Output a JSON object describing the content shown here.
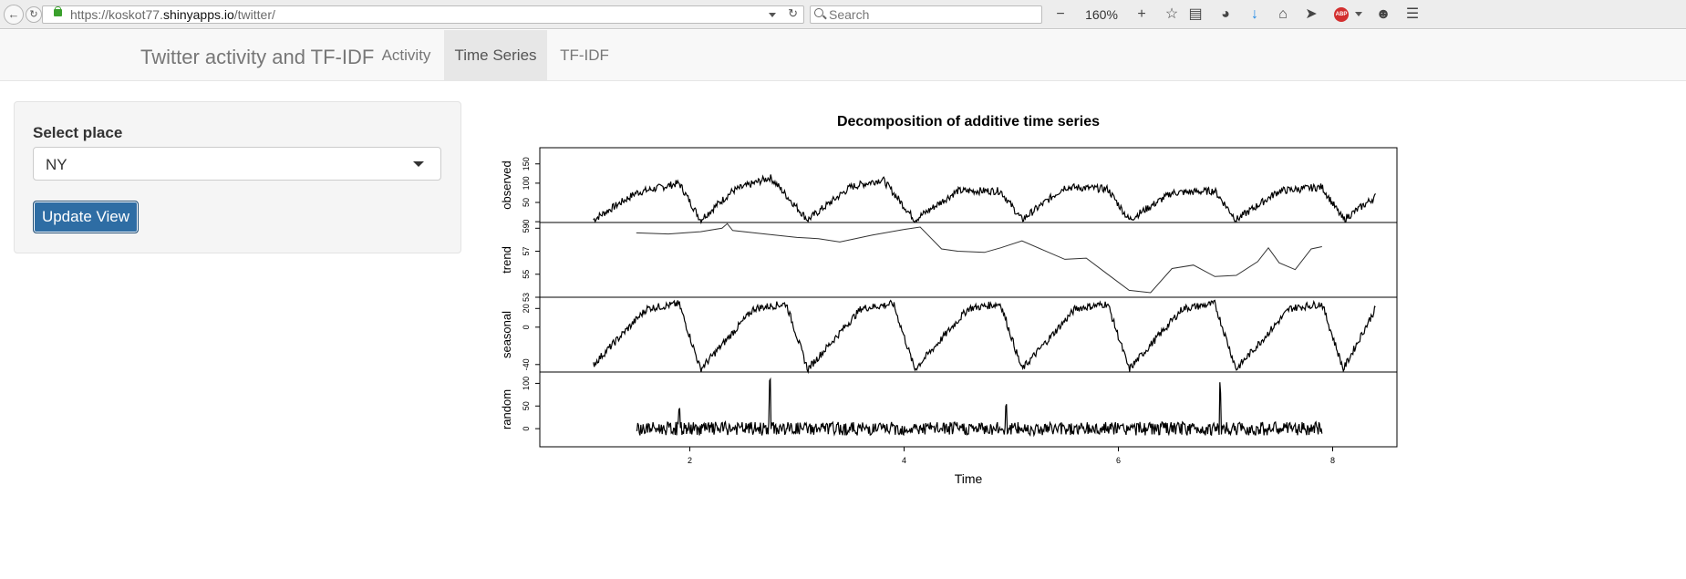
{
  "browser": {
    "url_prefix": "https://koskot77.",
    "url_host": "shinyapps.io",
    "url_suffix": "/twitter/",
    "search_placeholder": "Search",
    "zoom_level": "160%",
    "zoom_out_label": "−",
    "zoom_in_label": "+"
  },
  "app": {
    "brand": "Twitter activity and TF-IDF",
    "tabs": [
      {
        "label": "Activity",
        "active": false
      },
      {
        "label": "Time Series",
        "active": true
      },
      {
        "label": "TF-IDF",
        "active": false
      }
    ]
  },
  "sidebar": {
    "select_label": "Select place",
    "select_value": "NY",
    "button_label": "Update View",
    "button_color": "#2e6da4"
  },
  "chart_data": {
    "type": "line",
    "title": "Decomposition of additive time series",
    "xlabel": "Time",
    "xlim": [
      0.6,
      8.6
    ],
    "x_ticks": [
      2,
      4,
      6,
      8
    ],
    "panels": [
      {
        "name": "observed",
        "ylim": [
          -2,
          192
        ],
        "y_ticks": [
          0,
          50,
          100,
          150
        ],
        "description_points": {
          "x": [
            1.1,
            1.5,
            1.9,
            2.1,
            2.4,
            2.75,
            2.8,
            3.1,
            3.5,
            3.8,
            4.1,
            4.5,
            4.9,
            5.1,
            5.5,
            5.9,
            6.1,
            6.5,
            6.9,
            7.1,
            7.5,
            7.9,
            8.1,
            8.4
          ],
          "y": [
            5,
            75,
            100,
            5,
            80,
            115,
            100,
            5,
            90,
            110,
            5,
            80,
            80,
            5,
            90,
            85,
            5,
            75,
            80,
            5,
            80,
            90,
            5,
            65
          ]
        }
      },
      {
        "name": "trend",
        "ylim": [
          53,
          59.5
        ],
        "y_ticks": [
          53,
          55,
          57,
          59
        ],
        "x": [
          1.5,
          1.8,
          2.1,
          2.3,
          2.35,
          2.4,
          2.7,
          3.0,
          3.2,
          3.4,
          3.7,
          4.0,
          4.15,
          4.35,
          4.5,
          4.75,
          4.9,
          5.1,
          5.3,
          5.5,
          5.7,
          5.9,
          6.1,
          6.3,
          6.5,
          6.7,
          6.9,
          7.1,
          7.3,
          7.4,
          7.5,
          7.65,
          7.8,
          7.9
        ],
        "y": [
          58.6,
          58.5,
          58.7,
          59.0,
          59.4,
          58.8,
          58.5,
          58.2,
          58.1,
          57.8,
          58.4,
          58.9,
          59.1,
          57.2,
          57.0,
          56.9,
          57.3,
          57.9,
          57.1,
          56.3,
          56.4,
          55.0,
          53.6,
          53.4,
          55.5,
          55.8,
          54.8,
          54.9,
          56.1,
          57.3,
          56.0,
          55.4,
          57.2,
          57.4
        ]
      },
      {
        "name": "seasonal",
        "ylim": [
          -48,
          32
        ],
        "y_ticks": [
          -40,
          0,
          20
        ],
        "description_points": {
          "x": [
            1.1,
            1.6,
            1.9,
            2.1,
            2.6,
            2.9,
            3.1,
            3.6,
            3.9,
            4.1,
            4.6,
            4.9,
            5.1,
            5.6,
            5.9,
            6.1,
            6.6,
            6.9,
            7.1,
            7.6,
            7.9,
            8.1,
            8.4
          ],
          "y": [
            -40,
            20,
            25,
            -45,
            20,
            25,
            -45,
            20,
            25,
            -45,
            20,
            25,
            -45,
            20,
            25,
            -45,
            20,
            25,
            -45,
            20,
            25,
            -45,
            20
          ]
        }
      },
      {
        "name": "random",
        "ylim": [
          -40,
          125
        ],
        "y_ticks": [
          0,
          50,
          100
        ],
        "description_points": {
          "x": [
            1.5,
            1.9,
            2.75,
            4.95,
            6.95,
            7.9
          ],
          "y": [
            0,
            55,
            115,
            50,
            90,
            0
          ]
        }
      }
    ]
  }
}
